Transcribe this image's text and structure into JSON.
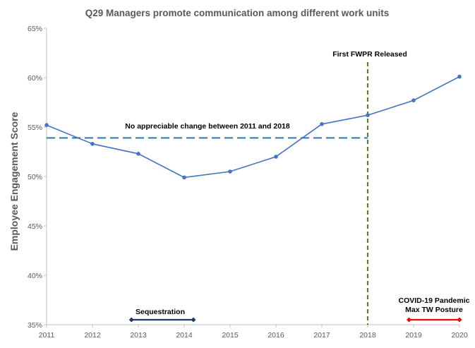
{
  "chart_data": {
    "type": "line",
    "title": "Q29 Managers  promote  communication  among  different  work  units",
    "ylabel": "Employee  Engagement  Score",
    "xlabel": "",
    "x": [
      2011,
      2012,
      2013,
      2014,
      2015,
      2016,
      2017,
      2018,
      2019,
      2020
    ],
    "x_tick_labels": [
      "2011",
      "2012",
      "2013",
      "2014",
      "2015",
      "2016",
      "2017",
      "2018",
      "2019",
      "2020"
    ],
    "ylim": [
      0.35,
      0.65
    ],
    "y_ticks": [
      0.35,
      0.4,
      0.45,
      0.5,
      0.55,
      0.6,
      0.65
    ],
    "y_tick_labels": [
      "35%",
      "40%",
      "45%",
      "50%",
      "55%",
      "60%",
      "65%"
    ],
    "series": [
      {
        "values": [
          0.552,
          0.533,
          0.523,
          0.499,
          0.505,
          0.52,
          0.553,
          0.562,
          0.577,
          0.601
        ],
        "color": "#4472C4"
      }
    ],
    "reference_line": {
      "label": "No appreciable change between 2011 and 2018",
      "y": 0.539,
      "x_range": [
        2011,
        2018
      ],
      "color": "#2E75B6",
      "style": "dashed"
    },
    "vertical_marker": {
      "label": "First FWPR Released",
      "x": 2018,
      "color": "#548235",
      "style": "dashed"
    },
    "periods": [
      {
        "label": "Sequestration",
        "x_range": [
          2012.85,
          2014.2
        ],
        "y": 0.355,
        "color": "#1F3864"
      },
      {
        "label_lines": [
          "COVID-19 Pandemic",
          "Max TW Posture"
        ],
        "x_range": [
          2018.9,
          2020
        ],
        "y": 0.355,
        "color": "#FF0000"
      }
    ],
    "grid": false,
    "legend": "none"
  }
}
